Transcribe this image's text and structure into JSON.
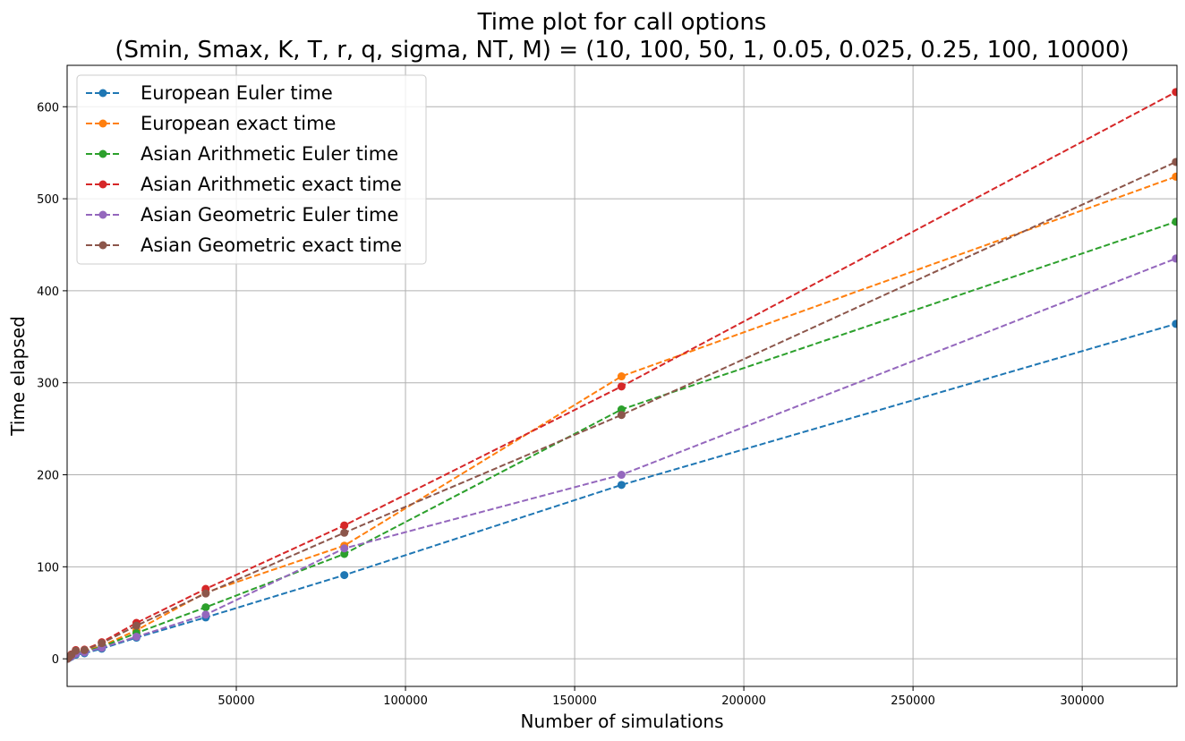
{
  "chart_data": {
    "type": "line",
    "title": "Time plot for call options",
    "subtitle": "(Smin, Smax, K, T, r, q, sigma, NT, M) = (10, 100, 50, 1, 0.05, 0.025, 0.25, 100, 10000)",
    "xlabel": "Number of simulations",
    "ylabel": "Time elapsed",
    "xlim": [
      0,
      328000
    ],
    "ylim": [
      -30,
      645
    ],
    "grid": true,
    "legend_position": "top-left",
    "marker": "circle",
    "line_style": "dashed",
    "x": [
      10,
      20,
      40,
      80,
      160,
      320,
      640,
      1280,
      2560,
      5120,
      10240,
      20480,
      40960,
      81920,
      163840,
      327680
    ],
    "xticks": [
      50000,
      100000,
      150000,
      200000,
      250000,
      300000
    ],
    "xtick_labels": [
      "50000",
      "100000",
      "150000",
      "200000",
      "250000",
      "300000"
    ],
    "yticks": [
      0,
      100,
      200,
      300,
      400,
      500,
      600
    ],
    "ytick_labels": [
      "0",
      "100",
      "200",
      "300",
      "400",
      "500",
      "600"
    ],
    "series": [
      {
        "name": "European Euler time",
        "color": "#1f77b4",
        "values": [
          0.02,
          0.04,
          0.08,
          0.15,
          0.3,
          0.6,
          1.2,
          2.4,
          4.5,
          6,
          11,
          23,
          45,
          91,
          189,
          364
        ]
      },
      {
        "name": "European exact time",
        "color": "#ff7f0e",
        "values": [
          0.03,
          0.06,
          0.12,
          0.24,
          0.5,
          1,
          2,
          3.8,
          7.5,
          9,
          14,
          31,
          72,
          123,
          307,
          524
        ]
      },
      {
        "name": "Asian Arithmetic Euler time",
        "color": "#2ca02c",
        "values": [
          0.03,
          0.05,
          0.1,
          0.2,
          0.4,
          0.8,
          1.6,
          3.2,
          6.5,
          8,
          13,
          28,
          56,
          114,
          271,
          475
        ]
      },
      {
        "name": "Asian Arithmetic exact time",
        "color": "#d62728",
        "values": [
          0.04,
          0.08,
          0.15,
          0.3,
          0.6,
          1.2,
          2.4,
          4.8,
          9.5,
          10,
          18,
          39,
          76,
          145,
          296,
          616
        ]
      },
      {
        "name": "Asian Geometric Euler time",
        "color": "#9467bd",
        "values": [
          0.02,
          0.05,
          0.09,
          0.18,
          0.35,
          0.7,
          1.4,
          2.8,
          5.5,
          7,
          12,
          24,
          48,
          120,
          200,
          435
        ]
      },
      {
        "name": "Asian Geometric exact time",
        "color": "#8c564b",
        "values": [
          0.04,
          0.07,
          0.14,
          0.28,
          0.55,
          1.1,
          2.2,
          4.4,
          8.8,
          9.5,
          17,
          36,
          71,
          137,
          265,
          540
        ]
      }
    ]
  }
}
